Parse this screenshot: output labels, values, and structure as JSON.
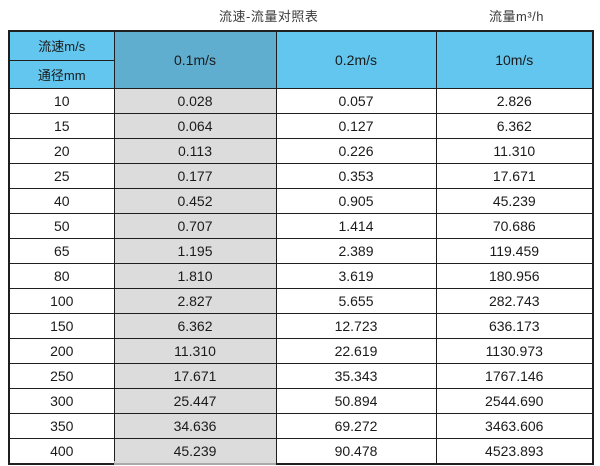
{
  "page": {
    "title": "流速-流量对照表",
    "unit_label": "流量m³/h"
  },
  "colors": {
    "header_blue": "#63C6EE",
    "header_blue_dark": "#5FAECF",
    "gray_column": "#DCDCDC",
    "border": "#1F1F1F"
  },
  "chart_data": {
    "type": "table",
    "title": "流速-流量对照表",
    "unit": "流量m³/h",
    "corner_labels": {
      "top": "流速m/s",
      "bottom": "通径mm"
    },
    "velocity_columns": [
      "0.1m/s",
      "0.2m/s",
      "10m/s"
    ],
    "diameter_column_label": "通径mm",
    "rows": [
      [
        "10",
        "0.028",
        "0.057",
        "2.826"
      ],
      [
        "15",
        "0.064",
        "0.127",
        "6.362"
      ],
      [
        "20",
        "0.113",
        "0.226",
        "11.310"
      ],
      [
        "25",
        "0.177",
        "0.353",
        "17.671"
      ],
      [
        "40",
        "0.452",
        "0.905",
        "45.239"
      ],
      [
        "50",
        "0.707",
        "1.414",
        "70.686"
      ],
      [
        "65",
        "1.195",
        "2.389",
        "119.459"
      ],
      [
        "80",
        "1.810",
        "3.619",
        "180.956"
      ],
      [
        "100",
        "2.827",
        "5.655",
        "282.743"
      ],
      [
        "150",
        "6.362",
        "12.723",
        "636.173"
      ],
      [
        "200",
        "11.310",
        "22.619",
        "1130.973"
      ],
      [
        "250",
        "17.671",
        "35.343",
        "1767.146"
      ],
      [
        "300",
        "25.447",
        "50.894",
        "2544.690"
      ],
      [
        "350",
        "34.636",
        "69.272",
        "3463.606"
      ],
      [
        "400",
        "45.239",
        "90.478",
        "4523.893"
      ]
    ]
  }
}
